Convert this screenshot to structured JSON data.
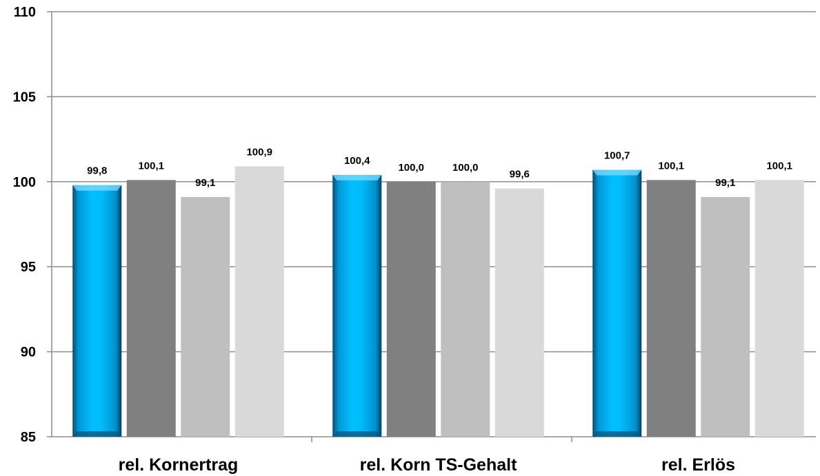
{
  "chart_data": {
    "type": "bar",
    "categories": [
      "rel. Kornertrag",
      "rel. Korn TS-Gehalt",
      "rel. Erlös"
    ],
    "series": [
      {
        "values": [
          99.8,
          100.4,
          100.7
        ],
        "labels": [
          "99,8",
          "100,4",
          "100,7"
        ],
        "color": "#00b0f0"
      },
      {
        "values": [
          100.1,
          100.0,
          100.1
        ],
        "labels": [
          "100,1",
          "100,0",
          "100,1"
        ],
        "color": "#808080"
      },
      {
        "values": [
          99.1,
          100.0,
          99.1
        ],
        "labels": [
          "99,1",
          "100,0",
          "99,1"
        ],
        "color": "#bfbfbf"
      },
      {
        "values": [
          100.9,
          99.6,
          100.1
        ],
        "labels": [
          "100,9",
          "99,6",
          "100,1"
        ],
        "color": "#d9d9d9"
      }
    ],
    "yticks": [
      {
        "value": 85,
        "label": "85"
      },
      {
        "value": 90,
        "label": "90"
      },
      {
        "value": 95,
        "label": "95"
      },
      {
        "value": 100,
        "label": "100"
      },
      {
        "value": 105,
        "label": "105"
      },
      {
        "value": 110,
        "label": "110"
      }
    ],
    "ylim": [
      85,
      110
    ],
    "grid": true,
    "legend": false
  }
}
